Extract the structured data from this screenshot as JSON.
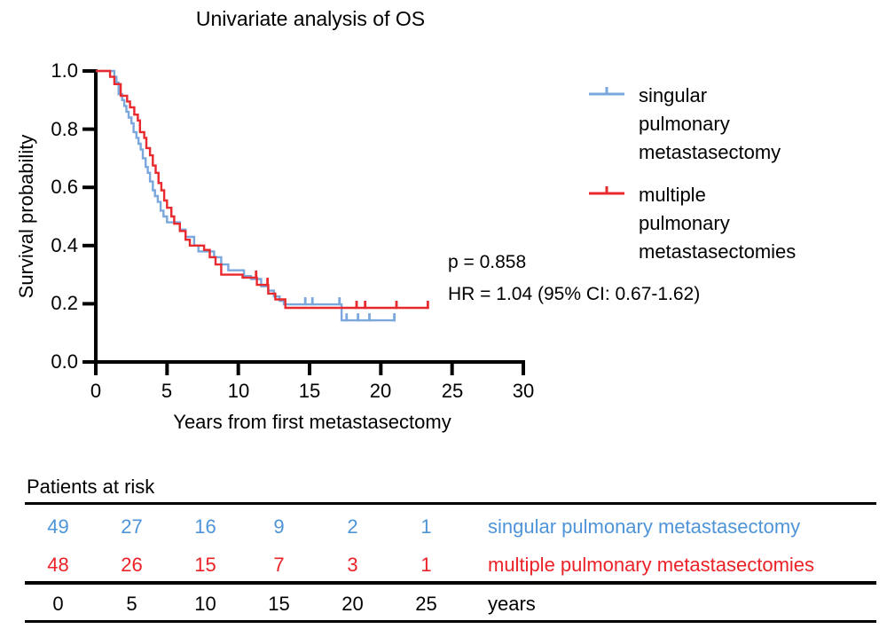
{
  "chart_data": {
    "type": "line",
    "subtype": "kaplan-meier-step-curve",
    "title": "Univariate analysis of OS",
    "xlabel": "Years from first metastasectomy",
    "ylabel": "Survival probability",
    "xlim": [
      0,
      30
    ],
    "ylim": [
      0.0,
      1.0
    ],
    "grid": false,
    "legend_position": "right",
    "xticks": [
      {
        "label": "0",
        "value": 0
      },
      {
        "label": "5",
        "value": 5
      },
      {
        "label": "10",
        "value": 10
      },
      {
        "label": "15",
        "value": 15
      },
      {
        "label": "20",
        "value": 20
      },
      {
        "label": "25",
        "value": 25
      },
      {
        "label": "30",
        "value": 30
      }
    ],
    "yticks": [
      {
        "label": "1.0",
        "value": 1.0
      },
      {
        "label": "0.8",
        "value": 0.8
      },
      {
        "label": "0.6",
        "value": 0.6
      },
      {
        "label": "0.4",
        "value": 0.4
      },
      {
        "label": "0.2",
        "value": 0.2
      },
      {
        "label": "0.0",
        "value": 0.0
      }
    ],
    "series": [
      {
        "name": "singular pulmonary metastasectomy",
        "color": "#7AA7DC",
        "start": [
          0,
          1.0
        ],
        "drops": [
          [
            1.3,
            0.98
          ],
          [
            1.45,
            0.96
          ],
          [
            1.6,
            0.92
          ],
          [
            1.85,
            0.9
          ],
          [
            2.0,
            0.88
          ],
          [
            2.15,
            0.86
          ],
          [
            2.3,
            0.84
          ],
          [
            2.5,
            0.82
          ],
          [
            2.65,
            0.79
          ],
          [
            2.85,
            0.77
          ],
          [
            3.0,
            0.75
          ],
          [
            3.15,
            0.73
          ],
          [
            3.3,
            0.7
          ],
          [
            3.5,
            0.67
          ],
          [
            3.65,
            0.65
          ],
          [
            3.8,
            0.62
          ],
          [
            4.0,
            0.59
          ],
          [
            4.15,
            0.57
          ],
          [
            4.35,
            0.55
          ],
          [
            4.55,
            0.52
          ],
          [
            4.75,
            0.5
          ],
          [
            5.0,
            0.48
          ],
          [
            5.9,
            0.455
          ],
          [
            6.3,
            0.43
          ],
          [
            6.9,
            0.4
          ],
          [
            7.2,
            0.38
          ],
          [
            8.3,
            0.36
          ],
          [
            8.8,
            0.335
          ],
          [
            9.3,
            0.315
          ],
          [
            10.4,
            0.295
          ],
          [
            10.9,
            0.285
          ],
          [
            11.6,
            0.26
          ],
          [
            12.1,
            0.245
          ],
          [
            12.5,
            0.225
          ],
          [
            12.9,
            0.21
          ],
          [
            13.2,
            0.198
          ],
          [
            17.25,
            0.143
          ]
        ],
        "end_time": 21.0,
        "censors": [
          [
            14.7,
            0.198
          ],
          [
            15.2,
            0.198
          ],
          [
            17.1,
            0.198
          ],
          [
            17.6,
            0.143
          ],
          [
            18.4,
            0.143
          ],
          [
            19.2,
            0.143
          ],
          [
            20.95,
            0.143
          ]
        ]
      },
      {
        "name": "multiple pulmonary metastasectomies",
        "color": "#E8292D",
        "start": [
          0,
          1.0
        ],
        "drops": [
          [
            1.0,
            0.98
          ],
          [
            1.3,
            0.955
          ],
          [
            1.75,
            0.915
          ],
          [
            2.2,
            0.895
          ],
          [
            2.4,
            0.875
          ],
          [
            2.7,
            0.85
          ],
          [
            2.95,
            0.83
          ],
          [
            3.1,
            0.79
          ],
          [
            3.4,
            0.77
          ],
          [
            3.55,
            0.735
          ],
          [
            3.8,
            0.71
          ],
          [
            4.0,
            0.675
          ],
          [
            4.2,
            0.65
          ],
          [
            4.4,
            0.615
          ],
          [
            4.6,
            0.59
          ],
          [
            4.8,
            0.555
          ],
          [
            5.0,
            0.53
          ],
          [
            5.3,
            0.5
          ],
          [
            5.5,
            0.475
          ],
          [
            5.9,
            0.45
          ],
          [
            6.3,
            0.42
          ],
          [
            6.6,
            0.4
          ],
          [
            7.6,
            0.385
          ],
          [
            8.0,
            0.36
          ],
          [
            8.4,
            0.335
          ],
          [
            8.8,
            0.3
          ],
          [
            10.3,
            0.29
          ],
          [
            11.3,
            0.265
          ],
          [
            12.1,
            0.235
          ],
          [
            12.6,
            0.215
          ],
          [
            13.3,
            0.186
          ]
        ],
        "end_time": 23.35,
        "censors": [
          [
            11.25,
            0.29
          ],
          [
            12.05,
            0.265
          ],
          [
            18.3,
            0.186
          ],
          [
            18.9,
            0.186
          ],
          [
            21.1,
            0.186
          ],
          [
            23.3,
            0.186
          ]
        ]
      }
    ],
    "annotations": {
      "p_value": "p = 0.858",
      "hazard_ratio": "HR = 1.04 (95% CI: 0.67-1.62)"
    }
  },
  "legend": {
    "entries": [
      {
        "lines": [
          "singular",
          "pulmonary",
          "metastasectomy"
        ]
      },
      {
        "lines": [
          "multiple",
          "pulmonary",
          "metastasectomies"
        ]
      }
    ]
  },
  "risk_table": {
    "title": "Patients at risk",
    "rows": [
      {
        "label": "singular pulmonary metastasectomy",
        "color": "#4E94D8",
        "counts": [
          "49",
          "27",
          "16",
          "9",
          "2",
          "1"
        ]
      },
      {
        "label": "multiple pulmonary metastasectomies",
        "color": "#EB2227",
        "counts": [
          "48",
          "26",
          "15",
          "7",
          "3",
          "1"
        ]
      }
    ],
    "time_row": {
      "values": [
        "0",
        "5",
        "10",
        "15",
        "20",
        "25"
      ],
      "label": "years"
    }
  }
}
